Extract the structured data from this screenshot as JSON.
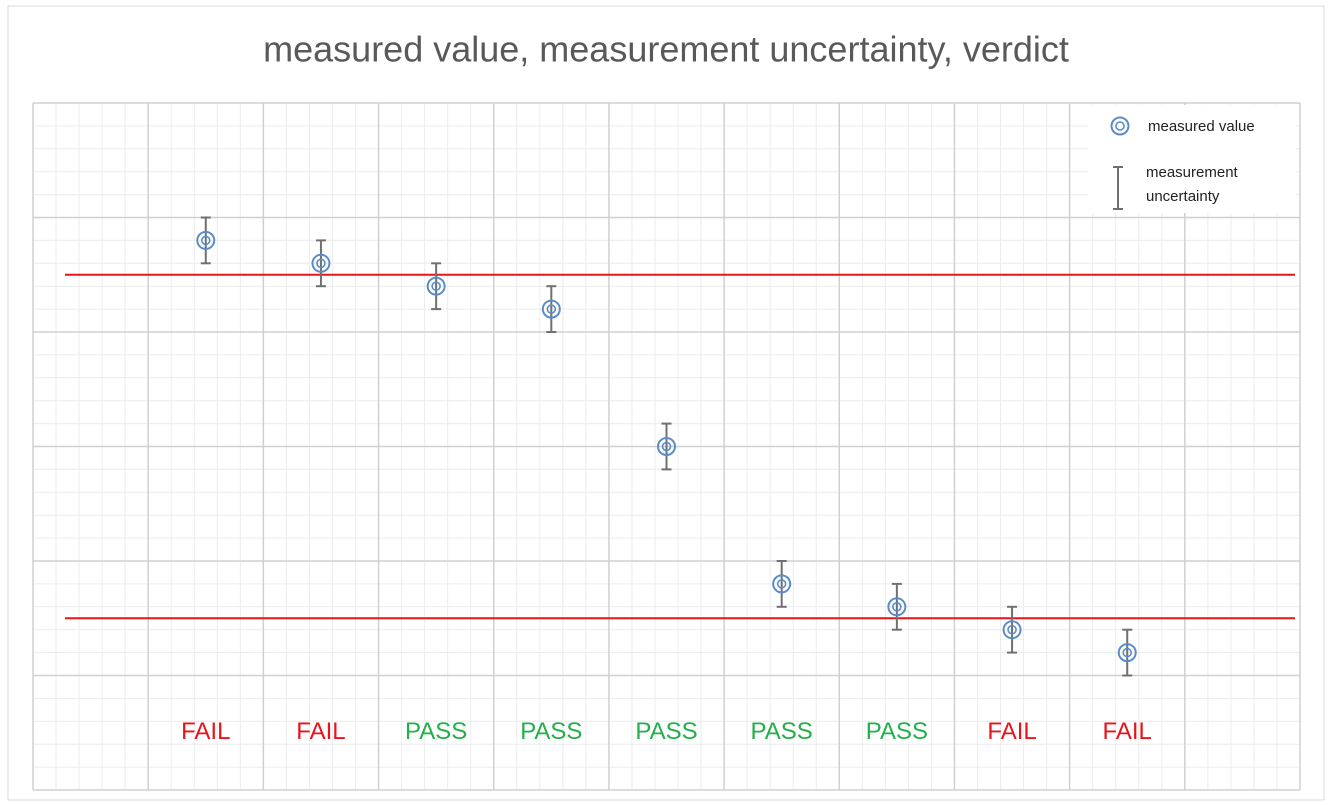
{
  "chart_data": {
    "type": "scatter",
    "title": "measured value, measurement uncertainty, verdict",
    "x": [
      1.5,
      2.5,
      3.5,
      4.5,
      5.5,
      6.5,
      7.5,
      8.5,
      9.5
    ],
    "series": [
      {
        "name": "measured value",
        "color": "#5b8cc8",
        "values": [
          4.8,
          4.6,
          4.4,
          4.2,
          3.0,
          1.8,
          1.6,
          1.4,
          1.2
        ],
        "errors": [
          0.2,
          0.2,
          0.2,
          0.2,
          0.2,
          0.2,
          0.2,
          0.2,
          0.2
        ],
        "error_name": "measurement uncertainty",
        "error_color": "#707070"
      }
    ],
    "limits": [
      {
        "value": 4.5,
        "color": "#e8141c"
      },
      {
        "value": 1.5,
        "color": "#e8141c"
      }
    ],
    "annotations": [
      {
        "x": 1.5,
        "y": 0.5,
        "text": "FAIL",
        "color": "#e8141c"
      },
      {
        "x": 2.5,
        "y": 0.5,
        "text": "FAIL",
        "color": "#e8141c"
      },
      {
        "x": 3.5,
        "y": 0.5,
        "text": "PASS",
        "color": "#22b04b"
      },
      {
        "x": 4.5,
        "y": 0.5,
        "text": "PASS",
        "color": "#22b04b"
      },
      {
        "x": 5.5,
        "y": 0.5,
        "text": "PASS",
        "color": "#22b04b"
      },
      {
        "x": 6.5,
        "y": 0.5,
        "text": "PASS",
        "color": "#22b04b"
      },
      {
        "x": 7.5,
        "y": 0.5,
        "text": "PASS",
        "color": "#22b04b"
      },
      {
        "x": 8.5,
        "y": 0.5,
        "text": "FAIL",
        "color": "#e8141c"
      },
      {
        "x": 9.5,
        "y": 0.5,
        "text": "FAIL",
        "color": "#e8141c"
      }
    ],
    "xlim": [
      0,
      11
    ],
    "ylim": [
      0,
      6
    ],
    "xticks": [
      0,
      1,
      2,
      3,
      4,
      5,
      6,
      7,
      8,
      9,
      10,
      11
    ],
    "yticks": [
      0,
      1,
      2,
      3,
      4,
      5,
      6
    ],
    "grid": true,
    "legend": "upper right"
  }
}
